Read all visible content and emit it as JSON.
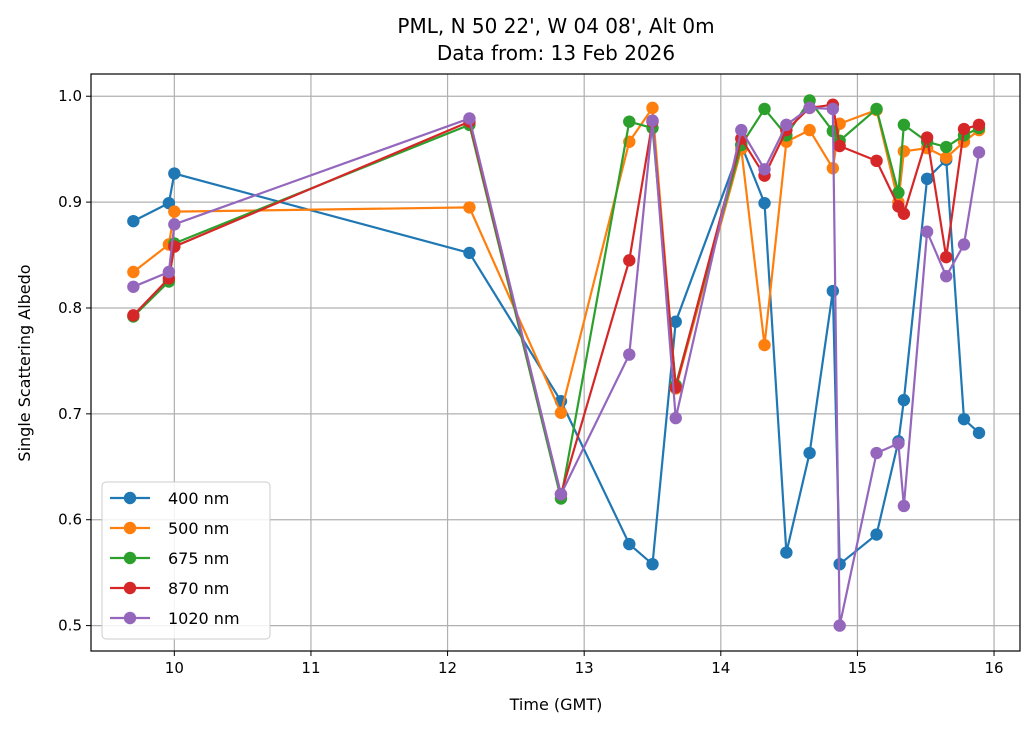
{
  "chart_data": {
    "type": "line",
    "title": "PML, N 50 22', W 04 08', Alt 0m",
    "subtitle": "Data from: 13 Feb 2026",
    "xlabel": "Time (GMT)",
    "ylabel": "Single Scattering Albedo",
    "xlim": [
      9.39,
      16.19
    ],
    "ylim": [
      0.476,
      1.021
    ],
    "xticks": [
      10,
      11,
      12,
      13,
      14,
      15,
      16
    ],
    "xtick_labels": [
      "10",
      "11",
      "12",
      "13",
      "14",
      "15",
      "16"
    ],
    "yticks": [
      0.5,
      0.6,
      0.7,
      0.8,
      0.9,
      1.0
    ],
    "ytick_labels": [
      "0.5",
      "0.6",
      "0.7",
      "0.8",
      "0.9",
      "1.0"
    ],
    "grid": true,
    "legend_position": "lower-left",
    "x": [
      9.7,
      9.96,
      10.0,
      12.16,
      12.83,
      13.33,
      13.5,
      13.67,
      14.15,
      14.32,
      14.48,
      14.65,
      14.82,
      14.87,
      15.14,
      15.3,
      15.34,
      15.51,
      15.65,
      15.78,
      15.89
    ],
    "series": [
      {
        "name": "400 nm",
        "color": "#1f77b4",
        "values": [
          0.882,
          0.899,
          0.927,
          0.852,
          0.712,
          0.577,
          0.558,
          0.787,
          0.954,
          0.899,
          0.569,
          0.663,
          0.816,
          0.558,
          0.586,
          0.674,
          0.713,
          0.922,
          0.94,
          0.695,
          0.682
        ]
      },
      {
        "name": "500 nm",
        "color": "#ff7f0e",
        "values": [
          0.834,
          0.86,
          0.891,
          0.895,
          0.701,
          0.957,
          0.989,
          0.724,
          0.95,
          0.765,
          0.957,
          0.968,
          0.932,
          0.974,
          0.987,
          0.9,
          0.948,
          0.951,
          0.942,
          0.957,
          0.968
        ]
      },
      {
        "name": "675 nm",
        "color": "#2ca02c",
        "values": [
          0.792,
          0.825,
          0.861,
          0.973,
          0.62,
          0.976,
          0.97,
          0.727,
          0.954,
          0.988,
          0.963,
          0.996,
          0.967,
          0.958,
          0.988,
          0.909,
          0.973,
          0.957,
          0.952,
          0.963,
          0.97
        ]
      },
      {
        "name": "870 nm",
        "color": "#d62728",
        "values": [
          0.793,
          0.828,
          0.858,
          0.976,
          0.624,
          0.845,
          0.976,
          0.725,
          0.96,
          0.925,
          0.968,
          0.989,
          0.992,
          0.953,
          0.939,
          0.896,
          0.889,
          0.961,
          0.848,
          0.969,
          0.973
        ]
      },
      {
        "name": "1020 nm",
        "color": "#9467bd",
        "values": [
          0.82,
          0.834,
          0.879,
          0.979,
          0.624,
          0.756,
          0.977,
          0.696,
          0.968,
          0.931,
          0.973,
          0.989,
          0.988,
          0.5,
          0.663,
          0.672,
          0.613,
          0.872,
          0.83,
          0.86,
          0.947
        ]
      }
    ]
  }
}
